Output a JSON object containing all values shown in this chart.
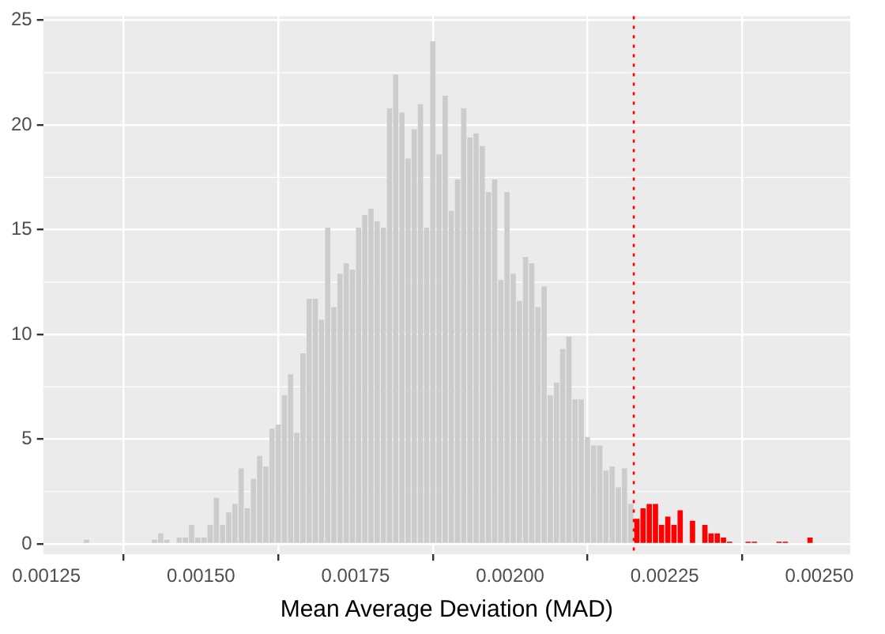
{
  "chart_data": {
    "type": "histogram",
    "xlabel": "Mean Average Deviation (MAD)",
    "bins": [
      0.00131,
      0.00132,
      0.00133,
      0.00134,
      0.00135,
      0.00136,
      0.00137,
      0.00138,
      0.00139,
      0.0014,
      0.00141,
      0.00142,
      0.00143,
      0.00144,
      0.00145,
      0.00146,
      0.00147,
      0.00148,
      0.00149,
      0.0015,
      0.00151,
      0.00152,
      0.00153,
      0.00154,
      0.00155,
      0.00156,
      0.00157,
      0.00158,
      0.00159,
      0.0016,
      0.00161,
      0.00162,
      0.00163,
      0.00164,
      0.00165,
      0.00166,
      0.00167,
      0.00168,
      0.00169,
      0.0017,
      0.00171,
      0.00172,
      0.00173,
      0.00174,
      0.00175,
      0.00176,
      0.00177,
      0.00178,
      0.00179,
      0.0018,
      0.00181,
      0.00182,
      0.00183,
      0.00184,
      0.00185,
      0.00186,
      0.00187,
      0.00188,
      0.00189,
      0.0019,
      0.00191,
      0.00192,
      0.00193,
      0.00194,
      0.00195,
      0.00196,
      0.00197,
      0.00198,
      0.00199,
      0.002,
      0.00201,
      0.00202,
      0.00203,
      0.00204,
      0.00205,
      0.00206,
      0.00207,
      0.00208,
      0.00209,
      0.0021,
      0.00211,
      0.00212,
      0.00213,
      0.00214,
      0.00215,
      0.00216,
      0.00217,
      0.00218,
      0.00219,
      0.0022,
      0.00221,
      0.00222,
      0.00223,
      0.00224,
      0.00225,
      0.00226,
      0.00227,
      0.00228,
      0.00229,
      0.0023,
      0.00231,
      0.00232,
      0.00233,
      0.00234,
      0.00235,
      0.00236,
      0.00237,
      0.00238,
      0.00239,
      0.0024,
      0.00241,
      0.00242,
      0.00243,
      0.00244,
      0.00245,
      0.00246,
      0.00247,
      0.00248,
      0.00249
    ],
    "values": [
      0.2,
      0,
      0,
      0,
      0,
      0,
      0,
      0,
      0,
      0,
      0,
      0.2,
      0.5,
      0.2,
      0,
      0.3,
      0.3,
      0.9,
      0.3,
      0.3,
      0.9,
      2.2,
      0.9,
      1.5,
      1.9,
      3.6,
      1.7,
      3.1,
      4.2,
      3.7,
      5.5,
      5.7,
      7.1,
      8.1,
      5.3,
      9.1,
      11.7,
      11.7,
      10.7,
      15.1,
      11.3,
      12.9,
      13.4,
      13.1,
      15.1,
      15.7,
      16,
      15.4,
      15.1,
      20.8,
      22.4,
      20.6,
      18.4,
      19.8,
      21,
      15.1,
      24,
      18.6,
      21.4,
      15.9,
      17.4,
      20.8,
      19.4,
      19.6,
      19,
      16.8,
      17.4,
      12.6,
      16.8,
      12.9,
      11.6,
      13.7,
      13.4,
      11.3,
      12.3,
      7.1,
      7.7,
      9.3,
      9.9,
      6.9,
      6.9,
      5.1,
      4.7,
      4.7,
      3.5,
      3.7,
      2.7,
      3.6,
      1.9,
      1.2,
      1.7,
      1.9,
      1.9,
      0.9,
      1.3,
      0.9,
      1.6,
      0,
      1.1,
      0,
      0.9,
      0.5,
      0.5,
      0.3,
      0.1,
      0,
      0,
      0.1,
      0.1,
      0,
      0,
      0,
      0.1,
      0.1,
      0,
      0,
      0,
      0.3
    ],
    "colors": [
      "#cccccc",
      "#cccccc",
      "#cccccc",
      "#cccccc",
      "#cccccc",
      "#cccccc",
      "#cccccc",
      "#cccccc",
      "#cccccc",
      "#cccccc",
      "#cccccc",
      "#cccccc",
      "#cccccc",
      "#cccccc",
      "#cccccc",
      "#cccccc",
      "#cccccc",
      "#cccccc",
      "#cccccc",
      "#cccccc",
      "#cccccc",
      "#cccccc",
      "#cccccc",
      "#cccccc",
      "#cccccc",
      "#cccccc",
      "#cccccc",
      "#cccccc",
      "#cccccc",
      "#cccccc",
      "#cccccc",
      "#cccccc",
      "#cccccc",
      "#cccccc",
      "#cccccc",
      "#cccccc",
      "#cccccc",
      "#cccccc",
      "#cccccc",
      "#cccccc",
      "#cccccc",
      "#cccccc",
      "#cccccc",
      "#cccccc",
      "#cccccc",
      "#cccccc",
      "#cccccc",
      "#cccccc",
      "#cccccc",
      "#cccccc",
      "#cccccc",
      "#cccccc",
      "#cccccc",
      "#cccccc",
      "#cccccc",
      "#cccccc",
      "#cccccc",
      "#cccccc",
      "#cccccc",
      "#cccccc",
      "#cccccc",
      "#cccccc",
      "#cccccc",
      "#cccccc",
      "#cccccc",
      "#cccccc",
      "#cccccc",
      "#cccccc",
      "#cccccc",
      "#cccccc",
      "#cccccc",
      "#cccccc",
      "#cccccc",
      "#cccccc",
      "#cccccc",
      "#cccccc",
      "#cccccc",
      "#cccccc",
      "#cccccc",
      "#cccccc",
      "#cccccc",
      "#cccccc",
      "#cccccc",
      "#cccccc",
      "#cccccc",
      "#cccccc",
      "#cccccc",
      "#cccccc",
      "#cccccc",
      "#ff0000",
      "#ff0000",
      "#ff0000",
      "#ff0000",
      "#ff0000",
      "#ff0000",
      "#ff0000",
      "#ff0000",
      "#ff0000",
      "#ff0000",
      "#ff0000",
      "#ff0000",
      "#ff0000",
      "#ff0000",
      "#ff0000",
      "#ff0000",
      "#ff0000",
      "#ff0000",
      "#ff0000",
      "#ff0000",
      "#ff0000",
      "#ff0000",
      "#ff0000",
      "#ff0000",
      "#ff0000",
      "#ff0000",
      "#ff0000",
      "#ff0000",
      "#ff0000"
    ],
    "xlim": [
      0.001245,
      0.00255
    ],
    "xticks": [
      {
        "value": 0.00125,
        "label": "0.00125"
      },
      {
        "value": 0.0015,
        "label": "0.00150"
      },
      {
        "value": 0.00175,
        "label": "0.00175"
      },
      {
        "value": 0.002,
        "label": "0.00200"
      },
      {
        "value": 0.00225,
        "label": "0.00225"
      },
      {
        "value": 0.0025,
        "label": "0.00250"
      }
    ],
    "ylim": [
      -0.5,
      25.2
    ],
    "yticks": [
      0,
      5,
      10,
      15,
      20,
      25
    ],
    "ref_lines": [
      {
        "axis": "x",
        "value": 0.0022,
        "color": "#ff0000",
        "line_style": "dotted"
      }
    ],
    "grid": true,
    "legend": false
  }
}
